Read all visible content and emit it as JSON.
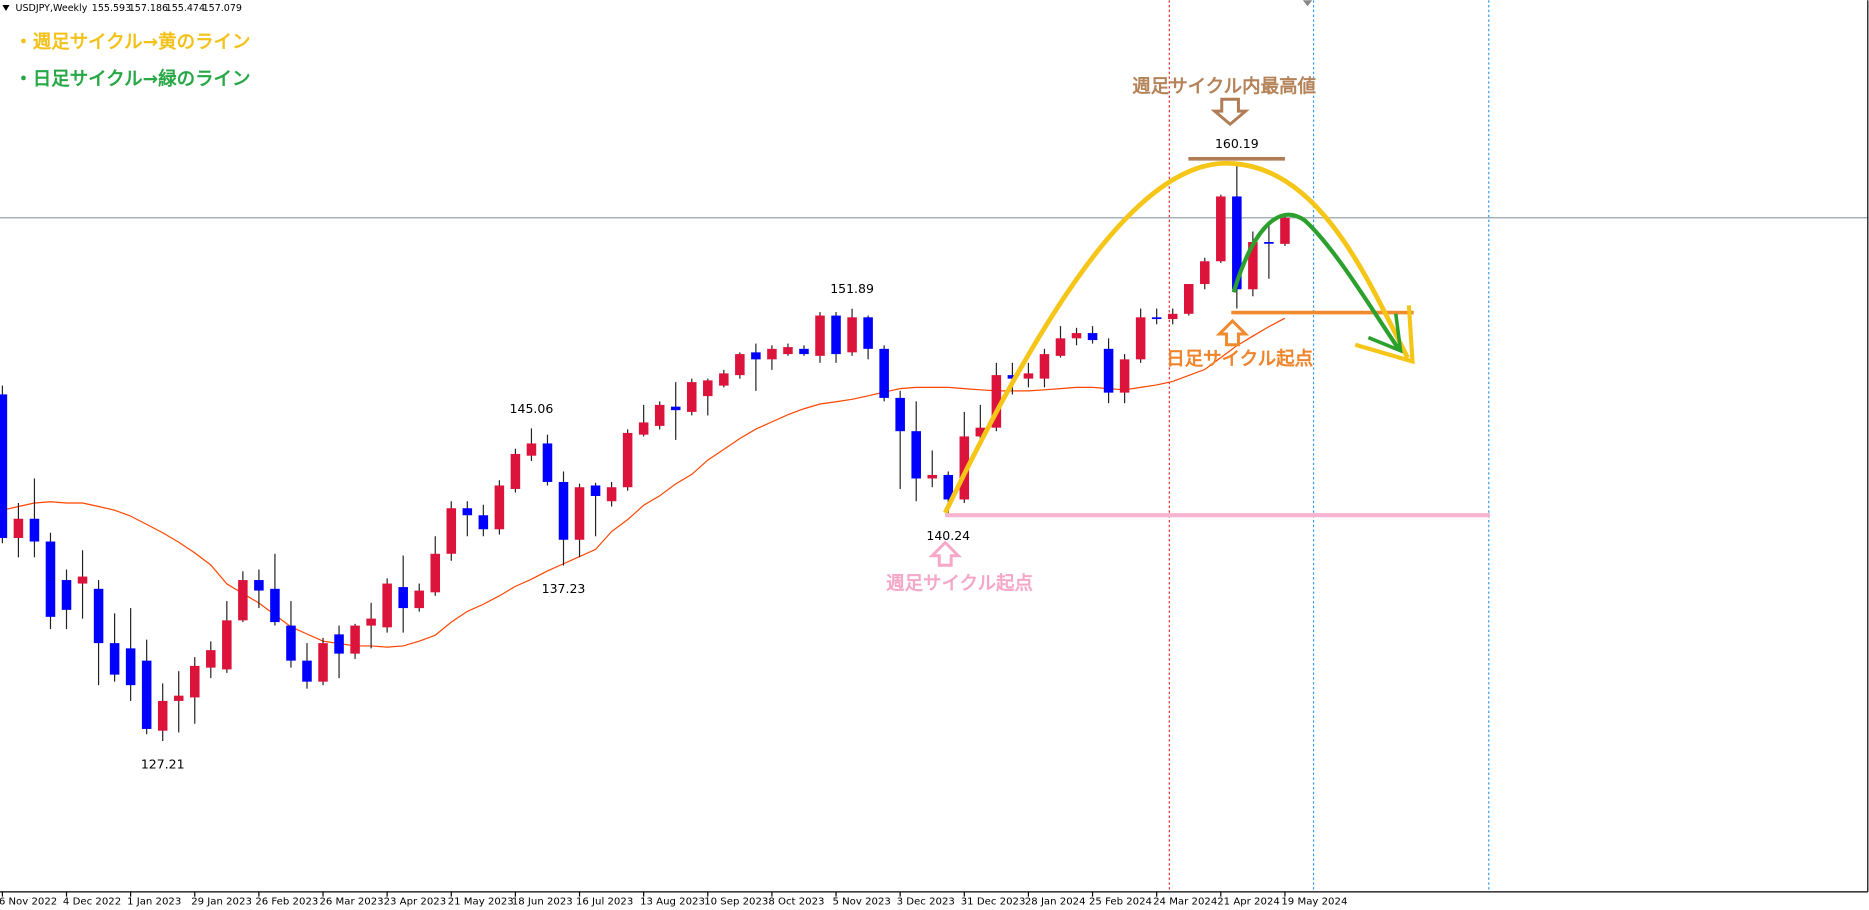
{
  "chart_data": {
    "type": "candlestick",
    "title": "USDJPY,Weekly",
    "categories": [
      "6 Nov 2022",
      null,
      null,
      null,
      "4 Dec 2022",
      null,
      null,
      null,
      "1 Jan 2023",
      null,
      null,
      null,
      "29 Jan 2023",
      null,
      null,
      null,
      "26 Feb 2023",
      null,
      null,
      null,
      "26 Mar 2023",
      null,
      null,
      null,
      "23 Apr 2023",
      null,
      null,
      null,
      "21 May 2023",
      null,
      null,
      null,
      "18 Jun 2023",
      null,
      null,
      null,
      "16 Jul 2023",
      null,
      null,
      null,
      "13 Aug 2023",
      null,
      null,
      null,
      "10 Sep 2023",
      null,
      null,
      null,
      "8 Oct 2023",
      null,
      null,
      null,
      "5 Nov 2023",
      null,
      null,
      null,
      "3 Dec 2023",
      null,
      null,
      null,
      "31 Dec 2023",
      null,
      null,
      null,
      "28 Jan 2024",
      null,
      null,
      null,
      "25 Feb 2024",
      null,
      null,
      null,
      "24 Mar 2024",
      null,
      null,
      null,
      "21 Apr 2024",
      null,
      null,
      null,
      "19 May 2024"
    ],
    "open": [
      147.0,
      138.8,
      139.9,
      138.6,
      136.4,
      136.2,
      135.9,
      132.8,
      132.5,
      131.8,
      127.8,
      129.5,
      129.7,
      131.4,
      131.3,
      134.1,
      136.4,
      135.9,
      133.8,
      131.8,
      130.6,
      133.3,
      132.2,
      133.8,
      133.7,
      136.0,
      134.8,
      135.7,
      137.9,
      140.5,
      140.1,
      139.3,
      141.6,
      143.5,
      144.2,
      142.0,
      138.7,
      141.8,
      140.9,
      141.7,
      144.7,
      145.2,
      146.3,
      146.0,
      146.9,
      147.5,
      148.1,
      149.4,
      149.0,
      149.3,
      149.6,
      149.2,
      151.5,
      149.4,
      151.4,
      149.6,
      146.8,
      144.9,
      142.2,
      142.4,
      141.0,
      144.6,
      145.1,
      148.1,
      147.9,
      147.9,
      149.2,
      150.2,
      150.5,
      149.6,
      147.1,
      149.0,
      151.4,
      151.3,
      151.6,
      153.3,
      154.6,
      158.3,
      153.0,
      155.7,
      155.593
    ],
    "high": [
      147.5,
      140.8,
      142.2,
      139.1,
      137.0,
      138.1,
      136.4,
      134.5,
      134.8,
      133.0,
      130.5,
      131.2,
      132.0,
      132.9,
      135.2,
      136.9,
      137.0,
      137.9,
      135.2,
      132.8,
      133.1,
      133.8,
      133.9,
      135.1,
      136.5,
      137.8,
      136.2,
      138.9,
      140.9,
      140.9,
      140.7,
      142.1,
      143.9,
      145.06,
      144.7,
      142.6,
      141.9,
      141.95,
      142.0,
      145.0,
      146.4,
      146.6,
      147.7,
      147.9,
      147.9,
      148.4,
      149.4,
      149.9,
      149.8,
      149.9,
      149.8,
      151.7,
      151.7,
      151.89,
      151.5,
      149.8,
      147.2,
      146.6,
      143.8,
      142.6,
      146.0,
      146.4,
      148.8,
      148.8,
      148.8,
      149.6,
      150.9,
      150.8,
      150.9,
      150.2,
      149.3,
      151.9,
      151.9,
      151.9,
      153.3,
      154.8,
      158.4,
      160.19,
      156.3,
      156.8,
      157.186
    ],
    "low": [
      138.5,
      137.7,
      137.7,
      133.6,
      133.6,
      134.2,
      130.4,
      130.6,
      129.5,
      127.6,
      127.21,
      127.7,
      128.2,
      130.8,
      131.1,
      134.0,
      134.8,
      133.8,
      131.4,
      130.2,
      130.4,
      130.8,
      131.9,
      132.5,
      133.4,
      133.4,
      134.6,
      135.5,
      137.5,
      138.9,
      138.9,
      139.0,
      141.4,
      143.2,
      141.8,
      137.23,
      137.7,
      138.9,
      140.6,
      141.5,
      144.6,
      145.0,
      144.4,
      145.8,
      145.8,
      147.4,
      147.9,
      147.2,
      148.4,
      149.2,
      149.2,
      148.8,
      148.8,
      149.2,
      149.0,
      146.6,
      141.6,
      140.9,
      141.7,
      140.24,
      140.8,
      144.3,
      144.9,
      147.0,
      147.4,
      147.4,
      149.1,
      149.8,
      149.9,
      146.5,
      146.5,
      148.8,
      151.0,
      151.0,
      151.5,
      153.0,
      154.5,
      151.9,
      152.6,
      153.6,
      155.474
    ],
    "close": [
      138.8,
      139.9,
      138.6,
      134.3,
      134.7,
      136.6,
      132.8,
      131.0,
      130.4,
      127.9,
      129.5,
      129.8,
      131.5,
      132.4,
      134.1,
      136.4,
      135.8,
      134.0,
      131.8,
      130.6,
      132.8,
      132.2,
      133.8,
      134.2,
      136.2,
      134.8,
      135.8,
      137.9,
      140.5,
      140.1,
      139.3,
      141.8,
      143.6,
      144.2,
      142.0,
      138.7,
      141.7,
      141.2,
      141.7,
      144.8,
      145.4,
      146.4,
      146.1,
      147.7,
      147.8,
      148.2,
      149.3,
      149.0,
      149.6,
      149.7,
      149.3,
      151.5,
      149.3,
      151.4,
      149.6,
      146.8,
      144.9,
      142.2,
      142.4,
      141.0,
      144.6,
      145.1,
      148.1,
      147.9,
      148.2,
      149.3,
      150.2,
      150.5,
      150.1,
      147.1,
      149.0,
      151.4,
      151.3,
      151.6,
      153.3,
      154.6,
      158.3,
      153.0,
      155.7,
      155.6,
      157.079
    ],
    "up_color": "#dc143c",
    "down_color": "#0000ff",
    "ma": {
      "color": "#ff4500",
      "values": [
        140.39,
        140.6,
        140.8,
        140.87,
        140.8,
        140.8,
        140.6,
        140.39,
        140.05,
        139.58,
        139.1,
        138.56,
        137.95,
        137.26,
        136.18,
        135.63,
        135.09,
        134.41,
        133.73,
        133.32,
        132.91,
        132.78,
        132.64,
        132.64,
        132.57,
        132.64,
        132.91,
        133.25,
        134.0,
        134.61,
        135.02,
        135.5,
        136.04,
        136.45,
        136.92,
        137.33,
        137.74,
        138.15,
        139.17,
        139.85,
        140.67,
        141.21,
        141.89,
        142.43,
        143.25,
        143.86,
        144.48,
        145.02,
        145.43,
        145.84,
        146.18,
        146.45,
        146.58,
        146.72,
        146.92,
        147.13,
        147.33,
        147.4,
        147.4,
        147.4,
        147.33,
        147.26,
        147.2,
        147.2,
        147.2,
        147.26,
        147.33,
        147.4,
        147.4,
        147.33,
        147.26,
        147.4,
        147.54,
        147.74,
        148.08,
        148.42,
        149.1,
        149.78,
        150.33,
        150.87,
        151.35
      ]
    },
    "ylim": [
      118.6,
      169.5
    ],
    "annotations": [
      "・週足サイクル→黄のライン",
      "・日足サイクル→緑のライン",
      "週足サイクル内最高値",
      "日足サイクル起点",
      "週足サイクル起点"
    ]
  }
}
